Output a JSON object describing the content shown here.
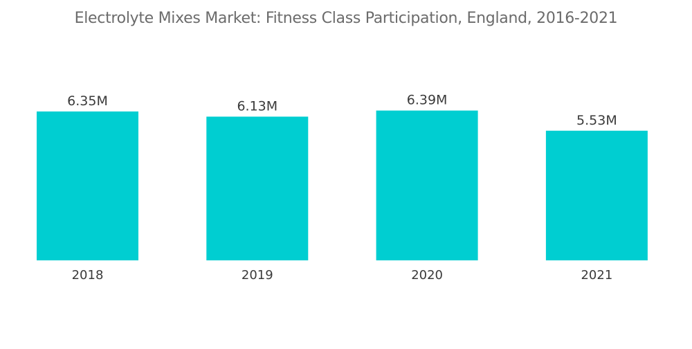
{
  "chart_data": {
    "type": "bar",
    "title": "Electrolyte Mixes Market: Fitness Class Participation, England, 2016-2021",
    "categories": [
      "2018",
      "2019",
      "2020",
      "2021"
    ],
    "values": [
      6.35,
      6.13,
      6.39,
      5.53
    ],
    "data_labels": [
      "6.35M",
      "6.13M",
      "6.39M",
      "5.53M"
    ],
    "xlabel": "",
    "ylabel": "",
    "ylim": [
      0,
      7.5
    ],
    "grid": false,
    "bar_color": "#00CED1"
  }
}
